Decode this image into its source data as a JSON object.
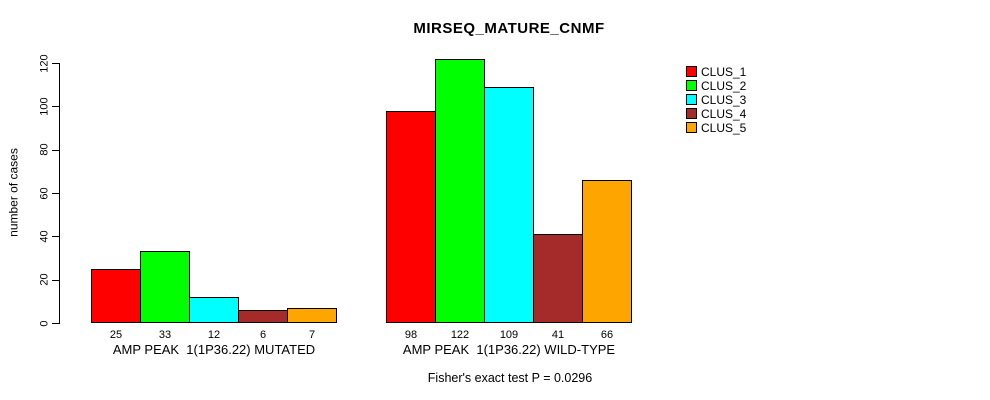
{
  "chart_data": {
    "type": "bar",
    "title": "MIRSEQ_MATURE_CNMF",
    "ylabel": "number of cases",
    "annotation": "Fisher's exact test P = 0.0296",
    "ylim": [
      0,
      120
    ],
    "yticks": [
      0,
      20,
      40,
      60,
      80,
      100,
      120
    ],
    "grid": false,
    "legend_position": "right",
    "value_labels_shown": true,
    "categories": [
      "AMP PEAK  1(1P36.22) MUTATED",
      "AMP PEAK  1(1P36.22) WILD-TYPE"
    ],
    "series": [
      {
        "name": "CLUS_1",
        "color": "#FF0000",
        "values": [
          25,
          98
        ]
      },
      {
        "name": "CLUS_2",
        "color": "#00FF00",
        "values": [
          33,
          122
        ]
      },
      {
        "name": "CLUS_3",
        "color": "#00FFFF",
        "values": [
          12,
          109
        ]
      },
      {
        "name": "CLUS_4",
        "color": "#A52A2A",
        "values": [
          6,
          41
        ]
      },
      {
        "name": "CLUS_5",
        "color": "#FFA500",
        "values": [
          7,
          66
        ]
      }
    ]
  }
}
